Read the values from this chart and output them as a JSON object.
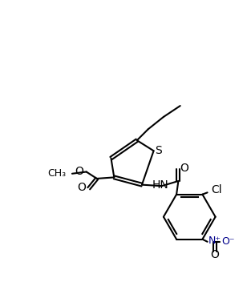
{
  "bg": "#ffffff",
  "lc": "#000000",
  "blue": "#00008B",
  "lw": 1.5,
  "fs": 9.5,
  "figsize": [
    3.13,
    3.82
  ],
  "dpi": 100,
  "xlim": [
    0,
    313
  ],
  "ylim": [
    0,
    382
  ]
}
